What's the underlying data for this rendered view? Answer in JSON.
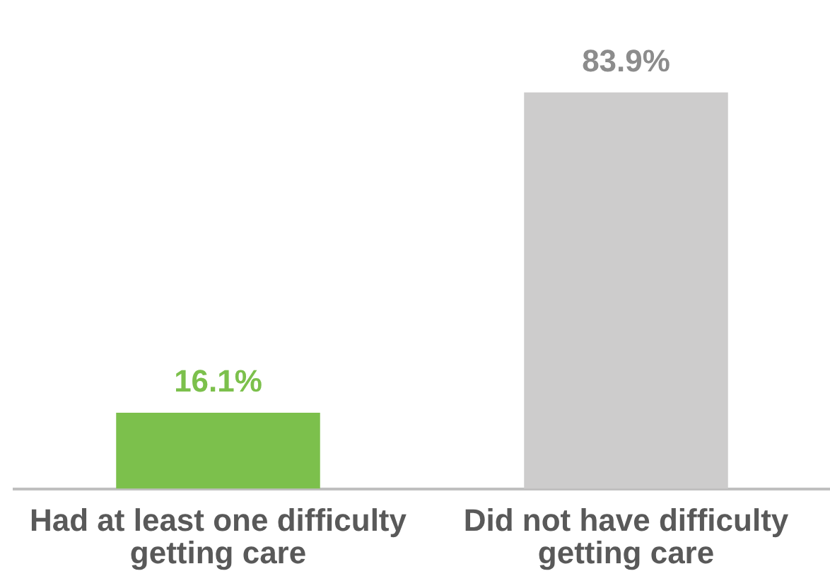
{
  "chart_data": {
    "type": "bar",
    "categories": [
      "Had at least one difficulty getting care",
      "Did not have difficulty getting care"
    ],
    "values": [
      16.1,
      83.9
    ],
    "colors": [
      "#7cc04c",
      "#cdcccc"
    ],
    "value_labels": [
      "16.1%",
      "83.9%"
    ],
    "grid": false,
    "legend": false
  }
}
